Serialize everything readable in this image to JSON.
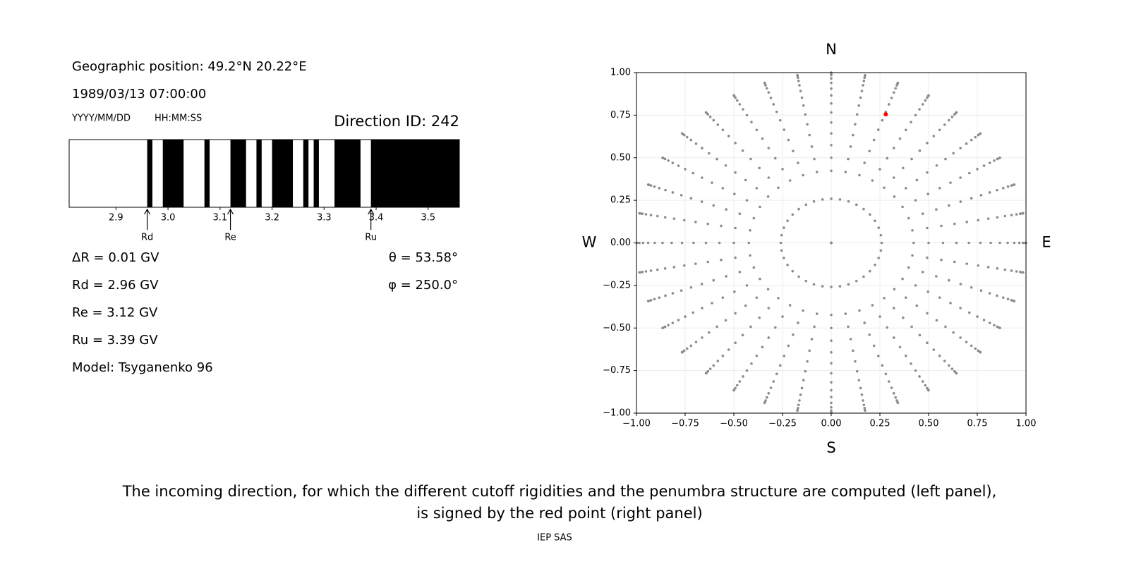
{
  "chart_data": [
    {
      "type": "penumbra",
      "title": "Direction ID: 242",
      "info": [
        "Geographic position: 49.2°N 20.22°E",
        "1989/03/13 07:00:00"
      ],
      "format_labels": [
        "YYYY/MM/DD",
        "HH:MM:SS"
      ],
      "results": [
        "ΔR = 0.01 GV",
        "Rd = 2.96 GV",
        "Re = 3.12 GV",
        "Ru = 3.39 GV",
        "Model: Tsyganenko 96"
      ],
      "angles": [
        "θ = 53.58°",
        "φ = 250.0°"
      ],
      "xlim": [
        2.81,
        3.56
      ],
      "xticks": [
        2.9,
        {
          "value": 3.0,
          "label": "3.0"
        },
        3.1,
        3.2,
        3.3,
        3.4,
        3.5
      ],
      "forbidden": [
        [
          2.96,
          2.97
        ],
        [
          2.99,
          3.03
        ],
        [
          3.07,
          3.08
        ],
        [
          3.12,
          3.15
        ],
        [
          3.17,
          3.18
        ],
        [
          3.2,
          3.24
        ],
        [
          3.26,
          3.27
        ],
        [
          3.28,
          3.29
        ],
        [
          3.32,
          3.37
        ],
        [
          3.39,
          3.56
        ]
      ],
      "color": "#000000",
      "annotations": [
        {
          "label": "Rd",
          "value": 2.96
        },
        {
          "label": "Re",
          "value": 3.12
        },
        {
          "label": "Ru",
          "value": 3.39
        }
      ]
    },
    {
      "type": "scatter",
      "direction_labels": {
        "top": "N",
        "bottom": "S",
        "left": "W",
        "right": "E"
      },
      "radii": [
        0,
        0.259,
        0.423,
        0.5,
        0.574,
        0.643,
        0.707,
        0.766,
        0.819,
        0.866,
        0.906,
        0.94,
        0.966,
        0.985,
        0.996,
        1.0
      ],
      "azimuths": [
        0,
        10,
        20,
        30,
        40,
        50,
        60,
        70,
        80,
        90,
        100,
        110,
        120,
        130,
        140,
        150,
        160,
        170,
        180,
        190,
        200,
        210,
        220,
        230,
        240,
        250,
        260,
        270,
        280,
        290,
        300,
        310,
        320,
        330,
        340,
        350
      ],
      "color": "#8c8c8c",
      "highlight": {
        "x": 0.28,
        "y": 0.755,
        "color": "#ff0000"
      },
      "xlim": [
        -1,
        1
      ],
      "ylim": [
        -1,
        1
      ],
      "xticks": [
        {
          "value": -1,
          "label": "−1.00"
        },
        {
          "value": -0.75,
          "label": "−0.75"
        },
        {
          "value": -0.5,
          "label": "−0.50"
        },
        {
          "value": -0.25,
          "label": "−0.25"
        },
        {
          "value": 0,
          "label": "0.00"
        },
        0.25,
        {
          "value": 0.5,
          "label": "0.50"
        },
        0.75,
        {
          "value": 1,
          "label": "1.00"
        }
      ],
      "yticks": [
        {
          "value": -1,
          "label": "−1.00"
        },
        {
          "value": -0.75,
          "label": "−0.75"
        },
        {
          "value": -0.5,
          "label": "−0.50"
        },
        {
          "value": -0.25,
          "label": "−0.25"
        },
        {
          "value": 0,
          "label": "0.00"
        },
        0.25,
        {
          "value": 0.5,
          "label": "0.50"
        },
        0.75,
        {
          "value": 1,
          "label": "1.00"
        }
      ],
      "grid": true
    }
  ],
  "caption": {
    "lines": [
      "The incoming direction, for which the different cutoff rigidities and the penumbra structure are computed (left panel),",
      "is signed by the red point (right panel)"
    ],
    "credit": "IEP SAS"
  }
}
